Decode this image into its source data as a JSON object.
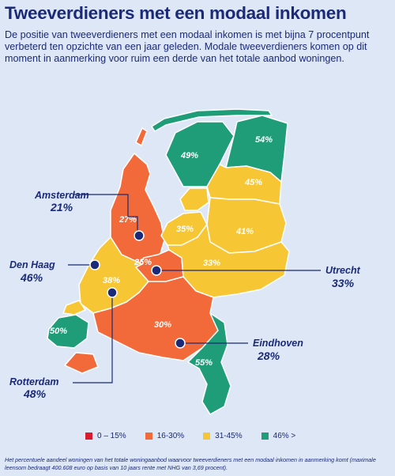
{
  "title": "Tweeverdieners met een modaal inkomen",
  "intro": "De positie van tweeverdieners met een modaal inkomen is met bijna 7 procentpunt verbeterd ten opzichte van een jaar geleden. Modale tweeverdieners komen op dit moment in aanmerking voor ruim een derde van het totale aanbod woningen.",
  "colors": {
    "low": "#d91a30",
    "mid": "#f26a3a",
    "upper": "#f7c634",
    "high": "#1f9c78",
    "text": "#1b2a78"
  },
  "regions": [
    {
      "label": "49%",
      "category": "high"
    },
    {
      "label": "54%",
      "category": "high"
    },
    {
      "label": "45%",
      "category": "upper"
    },
    {
      "label": "41%",
      "category": "upper"
    },
    {
      "label": "35%",
      "category": "upper"
    },
    {
      "label": "33%",
      "category": "upper"
    },
    {
      "label": "27%",
      "category": "mid"
    },
    {
      "label": "25%",
      "category": "mid"
    },
    {
      "label": "38%",
      "category": "upper"
    },
    {
      "label": "30%",
      "category": "mid"
    },
    {
      "label": "55%",
      "category": "high"
    },
    {
      "label": "50%",
      "category": "high"
    }
  ],
  "cities": [
    {
      "name": "Amsterdam",
      "value": "21%"
    },
    {
      "name": "Den Haag",
      "value": "46%"
    },
    {
      "name": "Utrecht",
      "value": "33%"
    },
    {
      "name": "Rotterdam",
      "value": "48%"
    },
    {
      "name": "Eindhoven",
      "value": "28%"
    }
  ],
  "legend": [
    {
      "label": "0 – 15%",
      "category": "low"
    },
    {
      "label": "16-30%",
      "category": "mid"
    },
    {
      "label": "31-45%",
      "category": "upper"
    },
    {
      "label": "46%  >",
      "category": "high"
    }
  ],
  "footnote": "Het percentuele aandeel woningen van het totale woningaanbod waarvoor tweeverdieners met een modaal inkomen in aanmerking komt (maximale leensom bedraagt 400.608 euro op basis van 10 jaars rente met NHG van 3,69 procent)."
}
